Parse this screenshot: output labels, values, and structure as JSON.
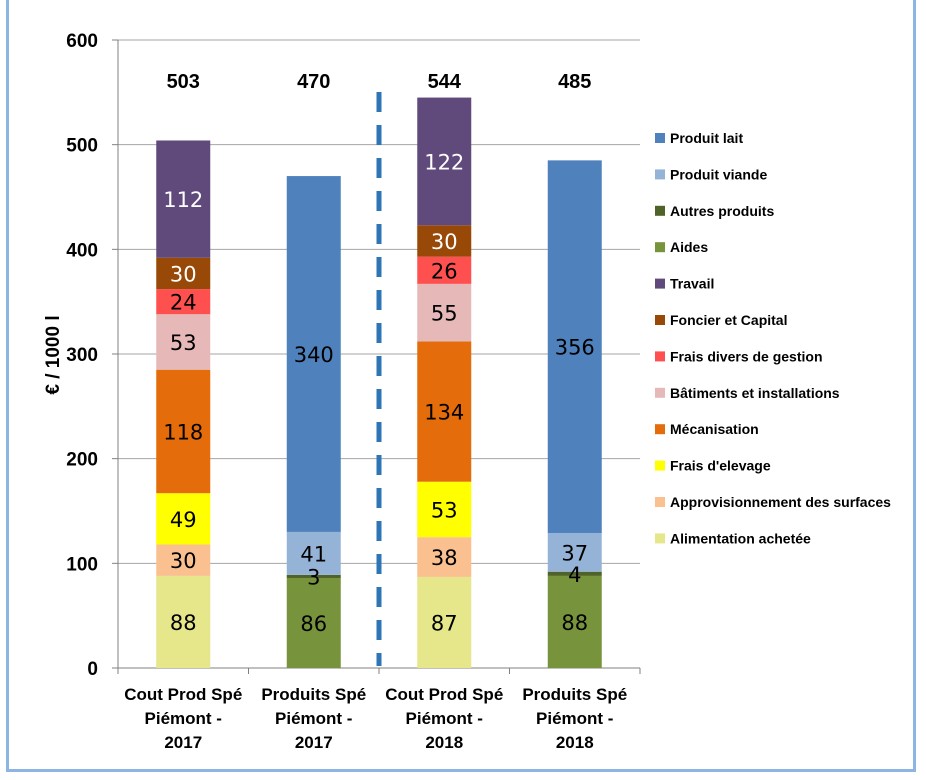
{
  "chart_data": {
    "type": "bar",
    "stacked": true,
    "ylabel": "€ / 1000 l",
    "ylim": [
      0,
      600
    ],
    "yticks": [
      "0",
      "100",
      "200",
      "300",
      "400",
      "500",
      "600"
    ],
    "grid": true,
    "legend_position": "right",
    "categories": [
      [
        "Cout Prod  Spé",
        "Piémont -",
        "2017"
      ],
      [
        "Produits Spé",
        "Piémont -",
        "2017"
      ],
      [
        "Cout Prod  Spé",
        "Piémont -",
        "2018"
      ],
      [
        "Produits Spé",
        "Piémont -",
        "2018"
      ]
    ],
    "totals": [
      "503",
      "470",
      "544",
      "485"
    ],
    "series": [
      {
        "name": "Alimentation achetée",
        "color": "#e6e68a",
        "text_color": "#000000",
        "values": [
          88,
          null,
          87,
          null
        ]
      },
      {
        "name": "Approvisionnement des surfaces",
        "color": "#fac090",
        "text_color": "#000000",
        "values": [
          30,
          null,
          38,
          null
        ]
      },
      {
        "name": "Frais d'elevage",
        "color": "#ffff00",
        "text_color": "#000000",
        "values": [
          49,
          null,
          53,
          null
        ]
      },
      {
        "name": "Mécanisation",
        "color": "#e46c0a",
        "text_color": "#000000",
        "values": [
          118,
          null,
          134,
          null
        ]
      },
      {
        "name": "Bâtiments et installations",
        "color": "#e6b9b8",
        "text_color": "#000000",
        "values": [
          53,
          null,
          55,
          null
        ]
      },
      {
        "name": "Frais divers de gestion",
        "color": "#ff5050",
        "text_color": "#000000",
        "values": [
          24,
          null,
          26,
          null
        ]
      },
      {
        "name": "Foncier et Capital",
        "color": "#984807",
        "text_color": "#ffffff",
        "values": [
          30,
          null,
          30,
          null
        ]
      },
      {
        "name": "Travail",
        "color": "#604a7b",
        "text_color": "#ffffff",
        "values": [
          112,
          null,
          122,
          null
        ]
      },
      {
        "name": "Aides",
        "color": "#77933c",
        "text_color": "#000000",
        "values": [
          null,
          86,
          null,
          88
        ]
      },
      {
        "name": "Autres produits",
        "color": "#4f6228",
        "text_color": "#000000",
        "values": [
          null,
          3,
          null,
          4
        ]
      },
      {
        "name": "Produit viande",
        "color": "#95b3d7",
        "text_color": "#000000",
        "values": [
          null,
          41,
          null,
          37
        ]
      },
      {
        "name": "Produit lait",
        "color": "#4f81bd",
        "text_color": "#000000",
        "values": [
          null,
          340,
          null,
          356
        ]
      }
    ],
    "legend_order": [
      "Produit lait",
      "Produit viande",
      "Autres produits",
      "Aides",
      "Travail",
      "Foncier et Capital",
      "Frais divers de gestion",
      "Bâtiments et installations",
      "Mécanisation",
      "Frais d'elevage",
      "Approvisionnement des surfaces",
      "Alimentation achetée"
    ],
    "divider_color": "#2e75b6"
  }
}
